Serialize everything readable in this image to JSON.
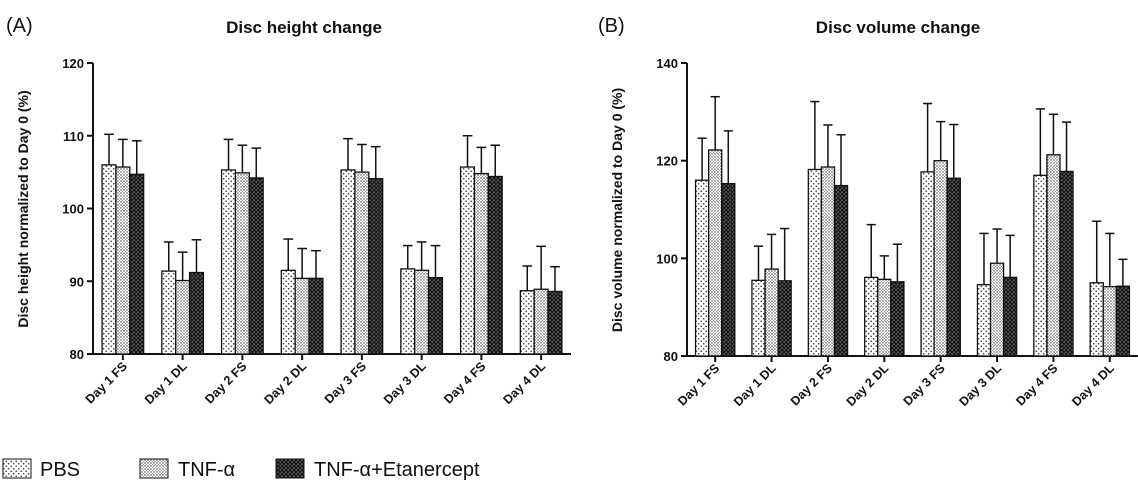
{
  "legend": [
    {
      "label": "PBS",
      "pattern": "sparse-dots"
    },
    {
      "label": "TNF-α",
      "pattern": "fine-dots"
    },
    {
      "label": "TNF-α+Etanercept",
      "pattern": "dense-crosshatch"
    }
  ],
  "chart_data": [
    {
      "panel": "(A)",
      "type": "bar",
      "title": "Disc height change",
      "xlabel": "",
      "ylabel": "Disc height normalized to Day 0 (%)",
      "ylim": [
        80,
        120
      ],
      "yticks": [
        80,
        90,
        100,
        110,
        120
      ],
      "categories": [
        "Day 1 FS",
        "Day 1 DL",
        "Day 2 FS",
        "Day 2 DL",
        "Day 3 FS",
        "Day 3 DL",
        "Day 4 FS",
        "Day 4 DL"
      ],
      "series": [
        {
          "name": "PBS",
          "values": [
            106.0,
            91.4,
            105.3,
            91.5,
            105.3,
            91.7,
            105.7,
            88.7
          ],
          "errors": [
            4.2,
            4.0,
            4.2,
            4.3,
            4.3,
            3.2,
            4.3,
            3.4
          ]
        },
        {
          "name": "TNF-α",
          "values": [
            105.7,
            90.1,
            104.9,
            90.4,
            105.0,
            91.5,
            104.8,
            88.9
          ],
          "errors": [
            3.8,
            3.9,
            3.8,
            4.1,
            3.8,
            3.9,
            3.6,
            5.9
          ]
        },
        {
          "name": "TNF-α+Etanercept",
          "values": [
            104.7,
            91.2,
            104.2,
            90.4,
            104.1,
            90.5,
            104.4,
            88.6
          ],
          "errors": [
            4.6,
            4.5,
            4.1,
            3.8,
            4.4,
            4.4,
            4.3,
            3.4
          ]
        }
      ],
      "grid": false,
      "legend_position": "bottom-left"
    },
    {
      "panel": "(B)",
      "type": "bar",
      "title": "Disc volume change",
      "xlabel": "",
      "ylabel": "Disc volume normalized to Day 0 (%)",
      "ylim": [
        80,
        140
      ],
      "yticks": [
        80,
        100,
        120,
        140
      ],
      "categories": [
        "Day 1 FS",
        "Day 1 DL",
        "Day 2 FS",
        "Day 2 DL",
        "Day 3 FS",
        "Day 3 DL",
        "Day 4 FS",
        "Day 4 DL"
      ],
      "series": [
        {
          "name": "PBS",
          "values": [
            116.0,
            95.5,
            118.2,
            96.1,
            117.7,
            94.6,
            117.0,
            95.0
          ],
          "errors": [
            8.6,
            7.0,
            13.9,
            10.8,
            14.0,
            10.5,
            13.6,
            12.6
          ]
        },
        {
          "name": "TNF-α",
          "values": [
            122.2,
            97.8,
            118.7,
            95.7,
            120.0,
            99.0,
            121.2,
            94.2
          ],
          "errors": [
            10.9,
            7.1,
            8.6,
            4.8,
            8.0,
            7.0,
            8.3,
            10.9
          ]
        },
        {
          "name": "TNF-α+Etanercept",
          "values": [
            115.3,
            95.4,
            114.9,
            95.2,
            116.4,
            96.1,
            117.8,
            94.3
          ],
          "errors": [
            10.8,
            10.7,
            10.4,
            7.7,
            11.0,
            8.6,
            10.1,
            5.5
          ]
        }
      ],
      "grid": false,
      "legend_position": "bottom-left"
    }
  ]
}
